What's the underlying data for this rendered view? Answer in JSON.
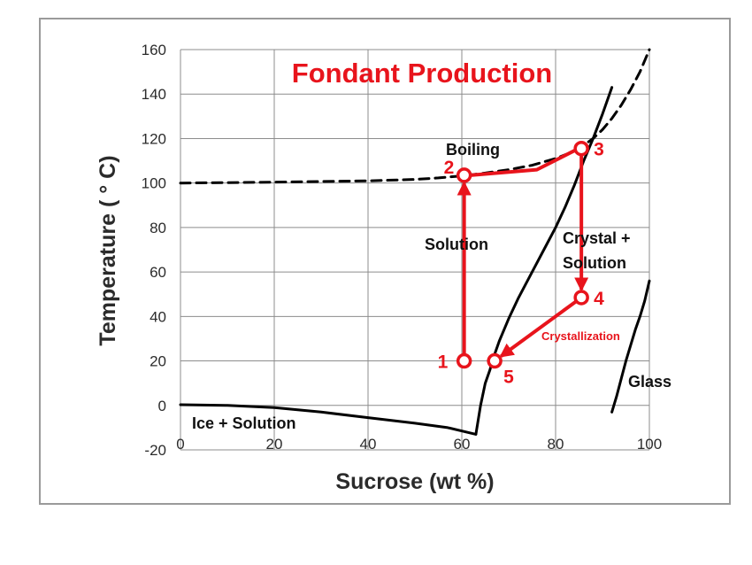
{
  "chart_data": {
    "type": "line",
    "title": "Fondant Production",
    "xlabel": "Sucrose (wt %)",
    "ylabel": "Temperature ( ° C)",
    "xlim": [
      0,
      100
    ],
    "ylim": [
      -20,
      160
    ],
    "xticks": [
      0,
      20,
      40,
      60,
      80,
      100
    ],
    "yticks": [
      -20,
      0,
      20,
      40,
      60,
      80,
      100,
      120,
      140,
      160
    ],
    "grid": true,
    "series": [
      {
        "style": "dashed",
        "color": "#000000",
        "x": [
          0,
          10,
          20,
          30,
          40,
          50,
          55,
          60,
          65,
          70,
          75,
          80,
          83,
          86,
          88,
          90,
          92,
          94,
          96,
          98,
          100
        ],
        "y": [
          100,
          100.2,
          100.4,
          100.7,
          101,
          101.6,
          102.3,
          103.2,
          104.5,
          106,
          108,
          111,
          113.5,
          117,
          120,
          124,
          129,
          135,
          142,
          150,
          160
        ]
      },
      {
        "style": "solid",
        "color": "#000000",
        "x": [
          0,
          10,
          20,
          30,
          40,
          50,
          57,
          63
        ],
        "y": [
          0.3,
          0,
          -1,
          -3,
          -5.5,
          -8,
          -10,
          -13
        ]
      },
      {
        "style": "solid",
        "color": "#000000",
        "x": [
          63,
          64,
          65,
          66,
          67,
          68,
          70,
          72,
          75,
          78,
          80,
          82,
          84,
          86,
          88,
          90,
          92
        ],
        "y": [
          -13,
          0,
          10,
          16,
          23,
          29,
          39,
          48,
          60,
          72,
          80,
          89,
          99,
          110,
          120,
          131,
          143
        ]
      },
      {
        "style": "solid",
        "color": "#000000",
        "x": [
          92,
          93,
          94,
          95,
          96,
          97,
          98,
          99,
          100
        ],
        "y": [
          -3,
          4,
          12,
          20,
          27,
          34,
          40,
          47,
          56
        ]
      }
    ],
    "process": {
      "color": "#e8141c",
      "points": [
        {
          "label": "1",
          "x": 60.5,
          "y": 20
        },
        {
          "label": "2",
          "x": 60.5,
          "y": 103.5
        },
        {
          "label": "3",
          "x": 85.5,
          "y": 115.5
        },
        {
          "label": "4",
          "x": 85.5,
          "y": 48.5
        },
        {
          "label": "5",
          "x": 67,
          "y": 20
        }
      ],
      "bend": {
        "x": 76,
        "y": 106
      }
    },
    "annotations": {
      "boiling": "Boiling",
      "solution": "Solution",
      "crystal_line1": "Crystal +",
      "crystal_line2": "Solution",
      "crystallization": "Crystallization",
      "ice_solution": "Ice + Solution",
      "glass": "Glass"
    }
  }
}
